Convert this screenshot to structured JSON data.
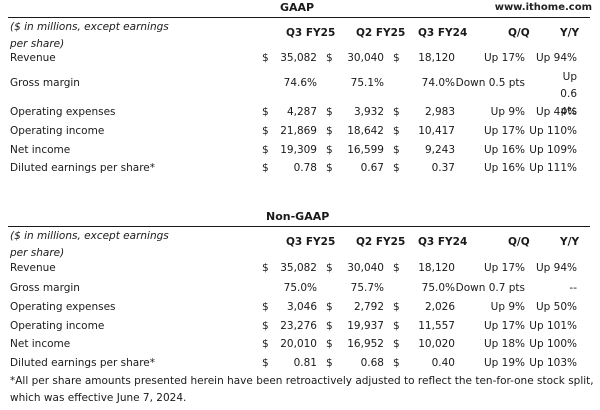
{
  "watermark": "www.ithome.com",
  "note": "($ in millions, except earnings per share)",
  "columns": [
    "Q3 FY25",
    "Q2 FY25",
    "Q3 FY24",
    "Q/Q",
    "Y/Y"
  ],
  "gaap": {
    "title": "GAAP",
    "rows": [
      {
        "label": "Revenue",
        "cur": [
          "$",
          "$",
          "$"
        ],
        "vals": [
          "35,082",
          "30,040",
          "18,120"
        ],
        "qq": "Up 17%",
        "yy": "Up 94%"
      },
      {
        "label": "Gross margin",
        "cur": [
          "",
          "",
          ""
        ],
        "vals": [
          "74.6%",
          "75.1%",
          "74.0%"
        ],
        "qq": "Down 0.5 pts",
        "yy": "Up 0.6 pts"
      },
      {
        "label": "Operating expenses",
        "cur": [
          "$",
          "$",
          "$"
        ],
        "vals": [
          "4,287",
          "3,932",
          "2,983"
        ],
        "qq": "Up 9%",
        "yy": "Up 44%"
      },
      {
        "label": "Operating income",
        "cur": [
          "$",
          "$",
          "$"
        ],
        "vals": [
          "21,869",
          "18,642",
          "10,417"
        ],
        "qq": "Up 17%",
        "yy": "Up 110%"
      },
      {
        "label": "Net income",
        "cur": [
          "$",
          "$",
          "$"
        ],
        "vals": [
          "19,309",
          "16,599",
          "9,243"
        ],
        "qq": "Up 16%",
        "yy": "Up 109%"
      },
      {
        "label": "Diluted earnings per share*",
        "cur": [
          "$",
          "$",
          "$"
        ],
        "vals": [
          "0.78",
          "0.67",
          "0.37"
        ],
        "qq": "Up 16%",
        "yy": "Up 111%"
      }
    ]
  },
  "nongaap": {
    "title": "Non-GAAP",
    "rows": [
      {
        "label": "Revenue",
        "cur": [
          "$",
          "$",
          "$"
        ],
        "vals": [
          "35,082",
          "30,040",
          "18,120"
        ],
        "qq": "Up 17%",
        "yy": "Up 94%"
      },
      {
        "label": "Gross margin",
        "cur": [
          "",
          "",
          ""
        ],
        "vals": [
          "75.0%",
          "75.7%",
          "75.0%"
        ],
        "qq": "Down 0.7 pts",
        "yy": "--"
      },
      {
        "label": "Operating expenses",
        "cur": [
          "$",
          "$",
          "$"
        ],
        "vals": [
          "3,046",
          "2,792",
          "2,026"
        ],
        "qq": "Up 9%",
        "yy": "Up 50%"
      },
      {
        "label": "Operating income",
        "cur": [
          "$",
          "$",
          "$"
        ],
        "vals": [
          "23,276",
          "19,937",
          "11,557"
        ],
        "qq": "Up 17%",
        "yy": "Up 101%"
      },
      {
        "label": "Net income",
        "cur": [
          "$",
          "$",
          "$"
        ],
        "vals": [
          "20,010",
          "16,952",
          "10,020"
        ],
        "qq": "Up 18%",
        "yy": "Up 100%"
      },
      {
        "label": "Diluted earnings per share*",
        "cur": [
          "$",
          "$",
          "$"
        ],
        "vals": [
          "0.81",
          "0.68",
          "0.40"
        ],
        "qq": "Up 19%",
        "yy": "Up 103%"
      }
    ]
  },
  "footnote": "*All per share amounts presented herein have been retroactively adjusted to reflect the ten-for-one stock split, which was effective June 7, 2024."
}
